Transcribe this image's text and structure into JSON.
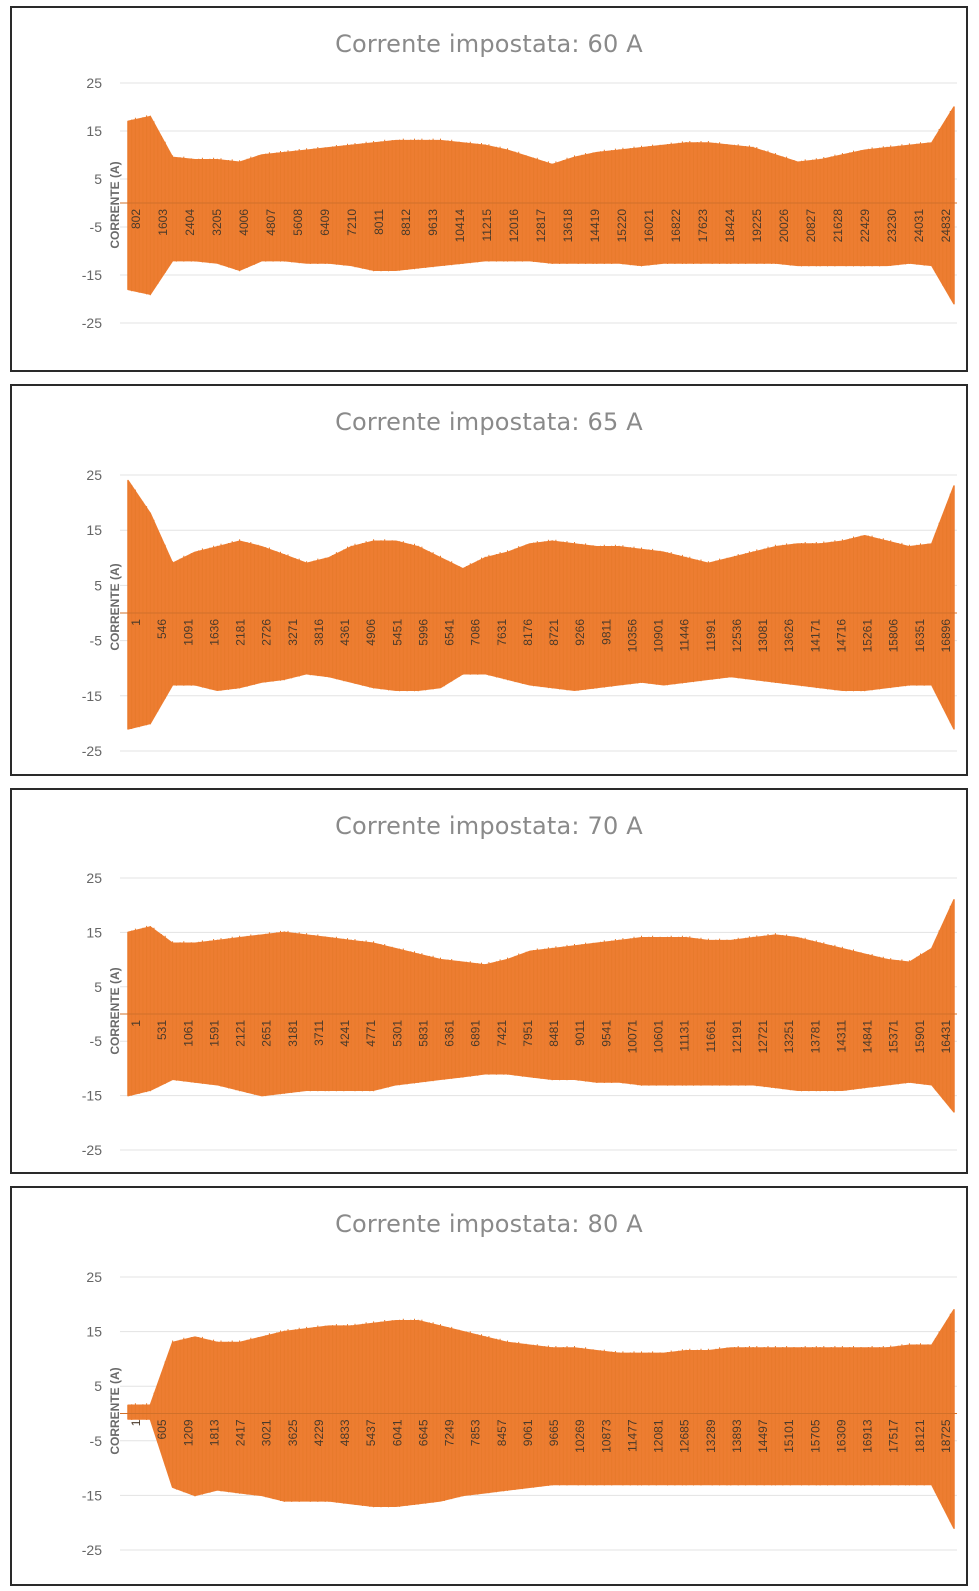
{
  "chart_data": [
    {
      "type": "line",
      "title": "Corrente impostata: 60 A",
      "ylabel": "CORRENTE (A)",
      "ylim": [
        -25,
        25
      ],
      "yticks": [
        25,
        15,
        5,
        -5,
        -15,
        -25
      ],
      "color": "#ED7D31",
      "x_tick_labels": [
        "802",
        "1603",
        "2404",
        "3205",
        "4006",
        "4807",
        "5608",
        "6409",
        "7210",
        "8011",
        "8812",
        "9613",
        "10414",
        "11215",
        "12016",
        "12817",
        "13618",
        "14419",
        "15220",
        "16021",
        "16822",
        "17623",
        "18424",
        "19225",
        "20026",
        "20827",
        "21628",
        "22429",
        "23230",
        "24031",
        "24832"
      ],
      "series": [
        {
          "upper_envelope": [
            17,
            18,
            9.5,
            9,
            9,
            8.5,
            10,
            10.5,
            11,
            11.5,
            12,
            12.5,
            13,
            13,
            13,
            12.5,
            12,
            11,
            9.5,
            8,
            9.5,
            10.5,
            11,
            11.5,
            12,
            12.5,
            12.5,
            12,
            11.5,
            10,
            8.5,
            9,
            10,
            11,
            11.5,
            12,
            12.5,
            20
          ],
          "lower_envelope": [
            -18,
            -19,
            -12,
            -12,
            -12.5,
            -14,
            -12,
            -12,
            -12.5,
            -12.5,
            -13,
            -14,
            -14,
            -13.5,
            -13,
            -12.5,
            -12,
            -12,
            -12,
            -12.5,
            -12.5,
            -12.5,
            -12.5,
            -13,
            -12.5,
            -12.5,
            -12.5,
            -12.5,
            -12.5,
            -12.5,
            -13,
            -13,
            -13,
            -13,
            -13,
            -12.5,
            -13,
            -21
          ]
        }
      ]
    },
    {
      "type": "line",
      "title": "Corrente impostata: 65 A",
      "ylabel": "CORRENTE (A)",
      "ylim": [
        -25,
        25
      ],
      "yticks": [
        25,
        15,
        5,
        -5,
        -15,
        -25
      ],
      "color": "#ED7D31",
      "x_tick_labels": [
        "1",
        "546",
        "1091",
        "1636",
        "2181",
        "2726",
        "3271",
        "3816",
        "4361",
        "4906",
        "5451",
        "5996",
        "6541",
        "7086",
        "7631",
        "8176",
        "8721",
        "9266",
        "9811",
        "10356",
        "10901",
        "11446",
        "11991",
        "12536",
        "13081",
        "13626",
        "14171",
        "14716",
        "15261",
        "15806",
        "16351",
        "16896"
      ],
      "series": [
        {
          "upper_envelope": [
            24,
            18,
            9,
            11,
            12,
            13,
            12,
            10.5,
            9,
            10,
            12,
            13,
            13,
            12,
            10,
            8,
            10,
            11,
            12.5,
            13,
            12.5,
            12,
            12,
            11.5,
            11,
            10,
            9,
            10,
            11,
            12,
            12.5,
            12.5,
            13,
            14,
            13,
            12,
            12.5,
            23
          ],
          "lower_envelope": [
            -21,
            -20,
            -13,
            -13,
            -14,
            -13.5,
            -12.5,
            -12,
            -11,
            -11.5,
            -12.5,
            -13.5,
            -14,
            -14,
            -13.5,
            -11,
            -11,
            -12,
            -13,
            -13.5,
            -14,
            -13.5,
            -13,
            -12.5,
            -13,
            -12.5,
            -12,
            -11.5,
            -12,
            -12.5,
            -13,
            -13.5,
            -14,
            -14,
            -13.5,
            -13,
            -13,
            -21
          ]
        }
      ]
    },
    {
      "type": "line",
      "title": "Corrente impostata: 70 A",
      "ylabel": "CORRENTE (A)",
      "ylim": [
        -25,
        25
      ],
      "yticks": [
        25,
        15,
        5,
        -5,
        -15,
        -25
      ],
      "color": "#ED7D31",
      "x_tick_labels": [
        "1",
        "531",
        "1061",
        "1591",
        "2121",
        "2651",
        "3181",
        "3711",
        "4241",
        "4771",
        "5301",
        "5831",
        "6361",
        "6891",
        "7421",
        "7951",
        "8481",
        "9011",
        "9541",
        "10071",
        "10601",
        "11131",
        "11661",
        "12191",
        "12721",
        "13251",
        "13781",
        "14311",
        "14841",
        "15371",
        "15901",
        "16431"
      ],
      "series": [
        {
          "upper_envelope": [
            15,
            16,
            13,
            13,
            13.5,
            14,
            14.5,
            15,
            14.5,
            14,
            13.5,
            13,
            12,
            11,
            10,
            9.5,
            9,
            10,
            11.5,
            12,
            12.5,
            13,
            13.5,
            14,
            14,
            14,
            13.5,
            13.5,
            14,
            14.5,
            14,
            13,
            12,
            11,
            10,
            9.5,
            12,
            21
          ],
          "lower_envelope": [
            -15,
            -14,
            -12,
            -12.5,
            -13,
            -14,
            -15,
            -14.5,
            -14,
            -14,
            -14,
            -14,
            -13,
            -12.5,
            -12,
            -11.5,
            -11,
            -11,
            -11.5,
            -12,
            -12,
            -12.5,
            -12.5,
            -13,
            -13,
            -13,
            -13,
            -13,
            -13,
            -13.5,
            -14,
            -14,
            -14,
            -13.5,
            -13,
            -12.5,
            -13,
            -18
          ]
        }
      ]
    },
    {
      "type": "line",
      "title": "Corrente impostata: 80 A",
      "ylabel": "CORRENTE (A)",
      "ylim": [
        -25,
        25
      ],
      "yticks": [
        25,
        15,
        5,
        -5,
        -15,
        -25
      ],
      "color": "#ED7D31",
      "x_tick_labels": [
        "1",
        "605",
        "1209",
        "1813",
        "2417",
        "3021",
        "3625",
        "4229",
        "4833",
        "5437",
        "6041",
        "6645",
        "7249",
        "7853",
        "8457",
        "9061",
        "9665",
        "10269",
        "10873",
        "11477",
        "12081",
        "12685",
        "13289",
        "13893",
        "14497",
        "15101",
        "15705",
        "16309",
        "16913",
        "17517",
        "18121",
        "18725"
      ],
      "series": [
        {
          "upper_envelope": [
            1.5,
            1.5,
            13,
            14,
            13,
            13,
            14,
            15,
            15.5,
            16,
            16,
            16.5,
            17,
            17,
            16,
            15,
            14,
            13,
            12.5,
            12,
            12,
            11.5,
            11,
            11,
            11,
            11.5,
            11.5,
            12,
            12,
            12,
            12,
            12,
            12,
            12,
            12,
            12.5,
            12.5,
            19
          ],
          "lower_envelope": [
            -1,
            -1,
            -13.5,
            -15,
            -14,
            -14.5,
            -15,
            -16,
            -16,
            -16,
            -16.5,
            -17,
            -17,
            -16.5,
            -16,
            -15,
            -14.5,
            -14,
            -13.5,
            -13,
            -13,
            -13,
            -13,
            -13,
            -13,
            -13,
            -13,
            -13,
            -13,
            -13,
            -13,
            -13,
            -13,
            -13,
            -13,
            -13,
            -13,
            -21
          ]
        }
      ]
    }
  ]
}
